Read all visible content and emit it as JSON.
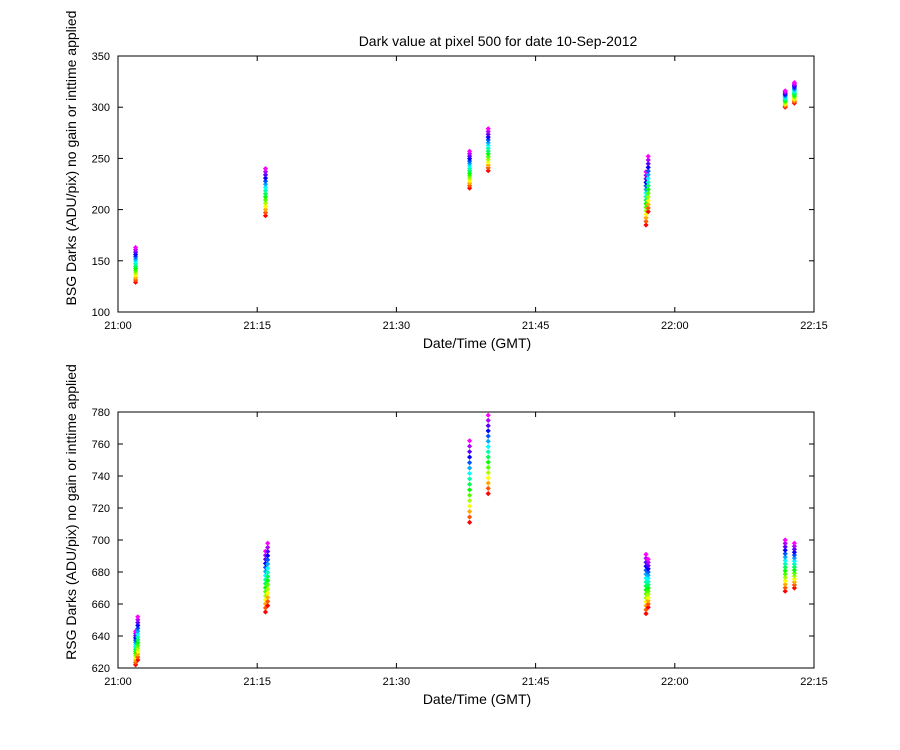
{
  "chart_data": [
    {
      "type": "scatter",
      "title": "Dark value at pixel 500 for date 10-Sep-2012",
      "xlabel": "Date/Time (GMT)",
      "ylabel": "BSG Darks (ADU/pix) no gain or inttime applied",
      "xlim": [
        "21:00",
        "22:15"
      ],
      "ylim": [
        100,
        350
      ],
      "xticks": [
        "21:00",
        "21:15",
        "21:30",
        "21:45",
        "22:00",
        "22:15"
      ],
      "yticks": [
        "100",
        "150",
        "200",
        "250",
        "300",
        "350"
      ],
      "grid": false,
      "clusters": [
        {
          "time": "21:02",
          "min": 129,
          "max": 163
        },
        {
          "time": "21:16",
          "min": 194,
          "max": 240
        },
        {
          "time": "21:38",
          "min": 221,
          "max": 257
        },
        {
          "time": "21:40",
          "min": 238,
          "max": 279
        },
        {
          "time": "21:57",
          "min": 185,
          "max": 237
        },
        {
          "time": "21:57",
          "min": 198,
          "max": 252
        },
        {
          "time": "22:12",
          "min": 300,
          "max": 316
        },
        {
          "time": "22:13",
          "min": 304,
          "max": 324
        }
      ]
    },
    {
      "type": "scatter",
      "title": "",
      "xlabel": "Date/Time (GMT)",
      "ylabel": "RSG Darks (ADU/pix) no gain or inttime applied",
      "xlim": [
        "21:00",
        "22:15"
      ],
      "ylim": [
        620,
        780
      ],
      "xticks": [
        "21:00",
        "21:15",
        "21:30",
        "21:45",
        "22:00",
        "22:15"
      ],
      "yticks": [
        "620",
        "640",
        "660",
        "680",
        "700",
        "720",
        "740",
        "760",
        "780"
      ],
      "grid": false,
      "clusters": [
        {
          "time": "21:02",
          "min": 622,
          "max": 643
        },
        {
          "time": "21:02",
          "min": 625,
          "max": 652
        },
        {
          "time": "21:16",
          "min": 655,
          "max": 693
        },
        {
          "time": "21:16",
          "min": 659,
          "max": 698
        },
        {
          "time": "21:38",
          "min": 711,
          "max": 762
        },
        {
          "time": "21:40",
          "min": 729,
          "max": 778
        },
        {
          "time": "21:57",
          "min": 654,
          "max": 691
        },
        {
          "time": "21:57",
          "min": 658,
          "max": 688
        },
        {
          "time": "22:12",
          "min": 668,
          "max": 700
        },
        {
          "time": "22:13",
          "min": 670,
          "max": 698
        }
      ]
    }
  ]
}
